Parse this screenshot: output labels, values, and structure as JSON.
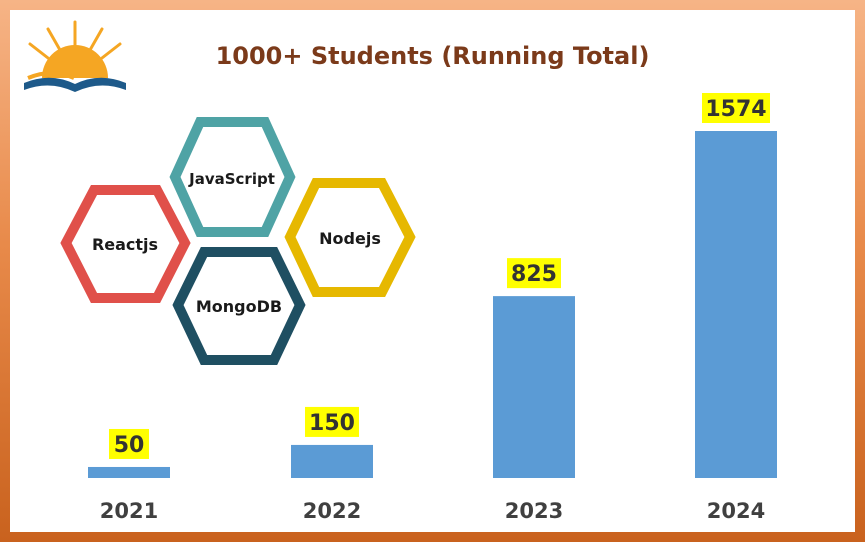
{
  "chart_data": {
    "type": "bar",
    "title": "1000+ Students (Running Total)",
    "categories": [
      "2021",
      "2022",
      "2023",
      "2024"
    ],
    "values": [
      50,
      150,
      825,
      1574
    ],
    "data_labels": [
      "50",
      "150",
      "825",
      "1574"
    ],
    "xlabel": "",
    "ylabel": "",
    "ylim": [
      0,
      1574
    ],
    "grid": false,
    "legend": "none",
    "colors": {
      "bar": "#5b9bd5",
      "label_bg": "#ffff00",
      "label_text": "#333333",
      "title": "#7b3a1a"
    }
  },
  "illustration": {
    "hexagons": [
      {
        "label": "JavaScript",
        "color": "#4fa3a5",
        "icon": "hexagon-shape"
      },
      {
        "label": "Reactjs",
        "color": "#e0504a",
        "icon": "hexagon-shape"
      },
      {
        "label": "Nodejs",
        "color": "#e6b800",
        "icon": "hexagon-shape"
      },
      {
        "label": "MongoDB",
        "color": "#1f4f62",
        "icon": "hexagon-shape"
      }
    ]
  },
  "logo": {
    "icon": "sunrise-book-logo",
    "colors": [
      "#f5a623",
      "#1e5a8a"
    ]
  }
}
